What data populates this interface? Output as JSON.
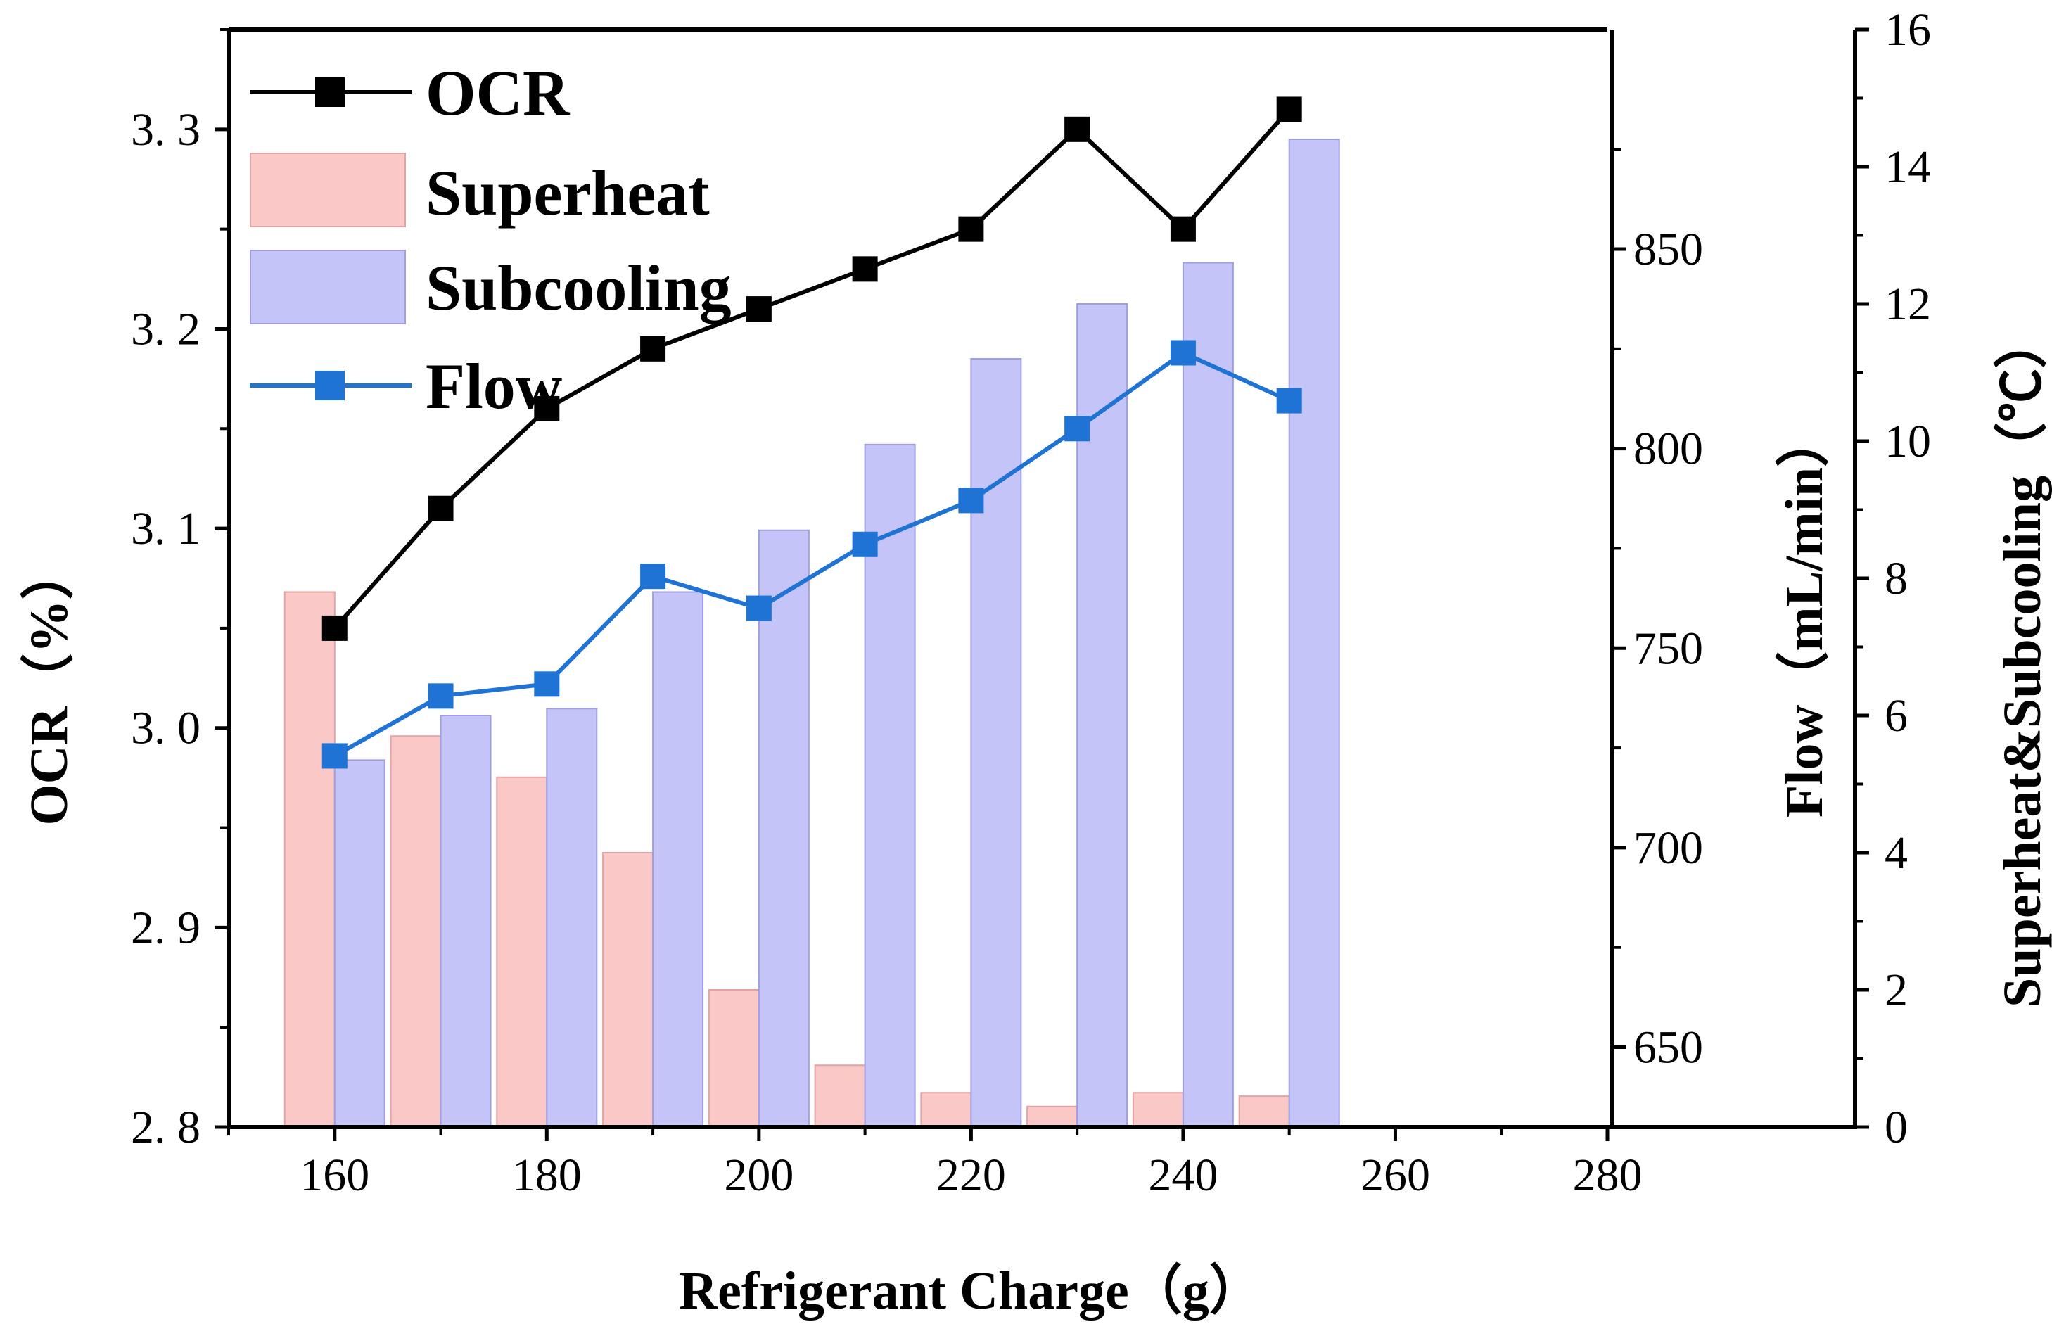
{
  "chart_data": {
    "type": "bar+line",
    "x_categories": [
      160,
      170,
      180,
      190,
      200,
      210,
      220,
      230,
      240,
      250
    ],
    "series": [
      {
        "name": "OCR",
        "kind": "line",
        "axis": "left",
        "color": "#000000",
        "values": [
          3.05,
          3.11,
          3.16,
          3.19,
          3.21,
          3.23,
          3.25,
          3.3,
          3.25,
          3.31
        ]
      },
      {
        "name": "Superheat",
        "kind": "bar",
        "axis": "right2",
        "color": "#fbc8c8",
        "edge": "#e4a3a3",
        "values": [
          7.8,
          5.7,
          5.1,
          4.0,
          2.0,
          0.9,
          0.5,
          0.3,
          0.5,
          0.45
        ]
      },
      {
        "name": "Subcooling",
        "kind": "bar",
        "axis": "right2",
        "color": "#c4c4f9",
        "edge": "#9f9fe0",
        "values": [
          5.35,
          6.0,
          6.1,
          7.8,
          8.7,
          9.95,
          11.2,
          12.0,
          12.6,
          14.4
        ]
      },
      {
        "name": "Flow",
        "kind": "line",
        "axis": "right1",
        "color": "#1e73d4",
        "values": [
          723,
          738,
          741,
          768,
          760,
          776,
          787,
          805,
          824,
          812
        ]
      }
    ],
    "x_axis": {
      "label": "Refrigerant Charge（g）",
      "range": [
        150,
        280
      ],
      "ticks": [
        "160",
        "180",
        "200",
        "220",
        "240",
        "260",
        "280"
      ],
      "tick_values": [
        160,
        180,
        200,
        220,
        240,
        260,
        280
      ]
    },
    "y_left": {
      "label": "OCR（%）",
      "range": [
        2.8,
        3.35
      ],
      "ticks": [
        "2. 8",
        "2. 9",
        "3. 0",
        "3. 1",
        "3. 2",
        "3. 3"
      ],
      "tick_values": [
        2.8,
        2.9,
        3.0,
        3.1,
        3.2,
        3.3
      ]
    },
    "y_right1": {
      "label": "Flow（mL/min）",
      "range": [
        630,
        905
      ],
      "ticks": [
        "650",
        "700",
        "750",
        "800",
        "850"
      ],
      "tick_values": [
        650,
        700,
        750,
        800,
        850
      ]
    },
    "y_right2": {
      "label": "Superheat&Subcooling（℃）",
      "range": [
        0,
        16
      ],
      "ticks": [
        "0",
        "2",
        "4",
        "6",
        "8",
        "10",
        "12",
        "14",
        "16"
      ],
      "tick_values": [
        0,
        2,
        4,
        6,
        8,
        10,
        12,
        14,
        16
      ]
    },
    "legend": {
      "position": "top-left",
      "entries": [
        "OCR",
        "Superheat",
        "Subcooling",
        "Flow"
      ]
    },
    "grid": false
  }
}
